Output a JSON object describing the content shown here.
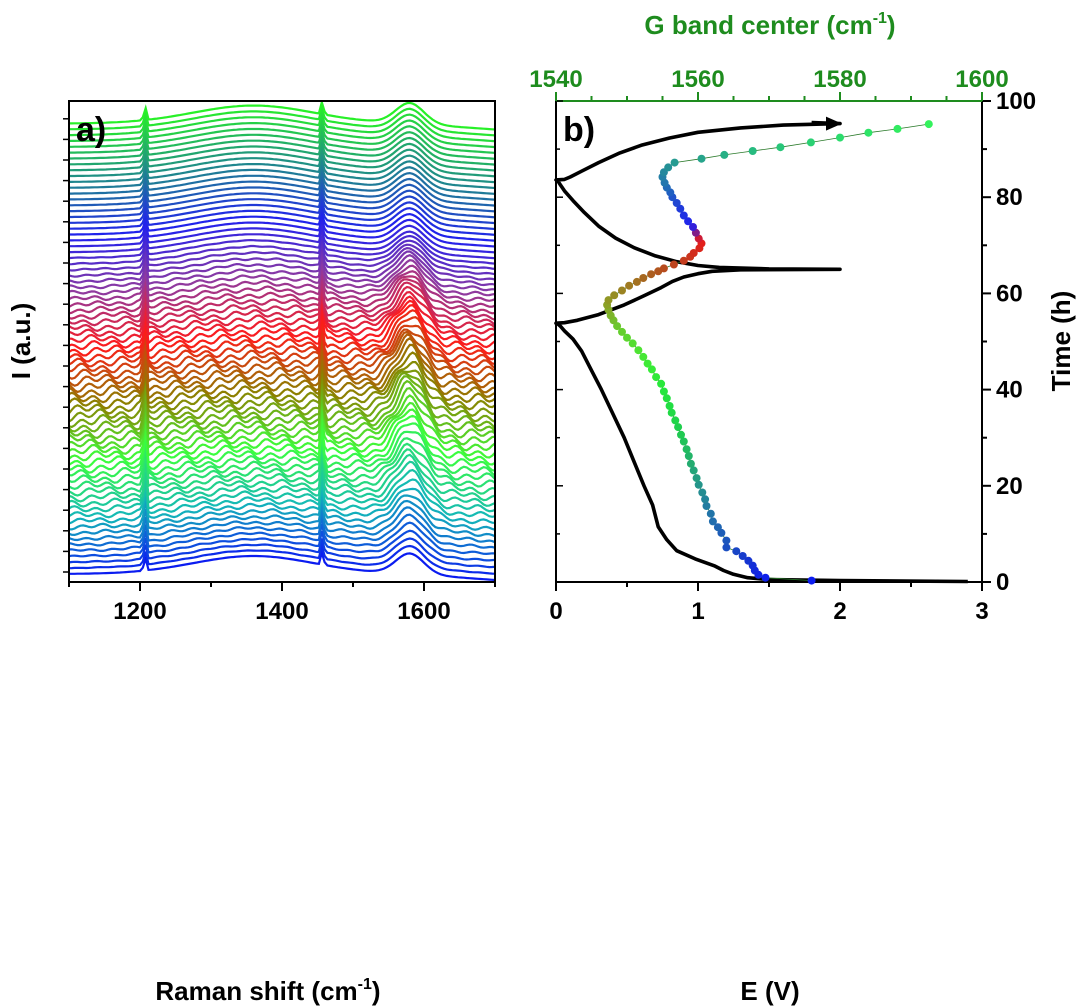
{
  "chart_data": [
    {
      "panel": "a)",
      "type": "line",
      "xlabel": "Raman shift (cm",
      "xlabel_sup": "-1",
      "xlabel_end": ")",
      "ylabel": "I (a.u.)",
      "xlim": [
        1100,
        1700
      ],
      "xticks": [
        1200,
        1400,
        1600
      ],
      "y_tick_labels_shown": false,
      "n_spectra": 78,
      "features": {
        "broad_D_band_center": 1360,
        "G_band_center": 1580,
        "sharp_spikes": [
          1207,
          1457
        ]
      },
      "color_sequence_bottom_to_top": [
        "#0b1cf0",
        "#13b8b8",
        "#3cff3c",
        "#8c8000",
        "#ff1a1a",
        "#8f3aa0",
        "#2020ee",
        "#1f8a8a",
        "#28f028"
      ],
      "highlight_color": "#ff1a1a"
    },
    {
      "panel": "b)",
      "type": "line",
      "xlabel": "E (V)",
      "xlim": [
        0,
        3
      ],
      "xticks": [
        0,
        1,
        2,
        3
      ],
      "ylabel": "Time (h)",
      "ylim": [
        0,
        100
      ],
      "yticks": [
        0,
        20,
        40,
        60,
        80,
        100
      ],
      "top_axis": {
        "label": "G band center (cm",
        "label_sup": "-1",
        "label_end": ")",
        "lim": [
          1540,
          1600
        ],
        "ticks": [
          1540,
          1560,
          1580,
          1600
        ],
        "color": "#1e8c1e"
      },
      "series": [
        {
          "axis": "E (V)",
          "color": "#000000",
          "x": [
            2.9,
            2.0,
            1.5,
            1.35,
            1.25,
            1.18,
            1.12,
            0.98,
            0.85,
            0.78,
            0.72,
            0.68,
            0.62,
            0.55,
            0.48,
            0.4,
            0.32,
            0.25,
            0.18,
            0.12,
            0.06,
            0.03,
            0.015,
            0.0,
            0.06,
            0.15,
            0.3,
            0.48,
            0.62,
            0.74,
            0.82,
            0.9,
            1.0,
            1.1,
            1.3,
            2.0,
            1.5,
            1.15,
            1.0,
            0.85,
            0.7,
            0.55,
            0.42,
            0.3,
            0.2,
            0.12,
            0.06,
            0.03,
            0.015,
            0.0,
            0.06,
            0.1,
            0.18,
            0.3,
            0.45,
            0.6,
            0.8,
            1.0,
            1.3,
            1.6,
            2.0,
            1.8
          ],
          "y": [
            0.1,
            0.3,
            0.5,
            0.9,
            1.6,
            2.4,
            3.3,
            4.8,
            6.5,
            8.8,
            11.5,
            16,
            20,
            25,
            30,
            35,
            40,
            44,
            48,
            50.5,
            52.2,
            53.2,
            53.6,
            53.8,
            53.9,
            54.4,
            55.6,
            57.6,
            59.5,
            61.2,
            62.5,
            63.4,
            64.1,
            64.6,
            64.9,
            65.0,
            65.1,
            65.4,
            65.8,
            66.6,
            67.8,
            69.5,
            71.5,
            74,
            76.8,
            79.3,
            81.3,
            82.6,
            83.3,
            83.6,
            83.7,
            84.2,
            85.4,
            87.2,
            89.2,
            90.8,
            92.3,
            93.5,
            94.4,
            95.0,
            95.3,
            95.5
          ]
        },
        {
          "axis": "G band center",
          "marker": "dot",
          "x": [
            1576,
            1569.5,
            1568.5,
            1568,
            1567.7,
            1567.1,
            1566.3,
            1565.4,
            1564,
            1564,
            1563.3,
            1562.8,
            1562.1,
            1561.8,
            1561.2,
            1561,
            1560.6,
            1560.1,
            1559.8,
            1559.4,
            1559,
            1558.7,
            1558.4,
            1558,
            1557.6,
            1557.2,
            1556.8,
            1556.3,
            1556,
            1555.6,
            1555.2,
            1554.8,
            1554.1,
            1553.5,
            1552.9,
            1552.3,
            1551.6,
            1550.8,
            1550,
            1549.3,
            1548.6,
            1548.1,
            1547.7,
            1547.4,
            1547.2,
            1547.4,
            1548.2,
            1549.3,
            1550.3,
            1551.4,
            1552.3,
            1553.4,
            1554.4,
            1555.2,
            1556.6,
            1558,
            1558.9,
            1559.4,
            1560.2,
            1560.5,
            1560.1,
            1559.7,
            1559.3,
            1558.6,
            1558,
            1557.5,
            1557,
            1556.4,
            1556.1,
            1555.6,
            1555.3,
            1555,
            1555.2,
            1555.8,
            1556.7,
            1560.5,
            1563.7,
            1567.7,
            1571.6,
            1575.9,
            1580,
            1584,
            1588.1,
            1592.5
          ],
          "y": [
            0.3,
            0.9,
            1.5,
            2.4,
            3.4,
            4.4,
            5.4,
            6.4,
            7.2,
            8.6,
            10.2,
            11.4,
            12.6,
            14.2,
            15.8,
            17.2,
            18.6,
            20.2,
            21.6,
            23.2,
            24.6,
            26.2,
            27.6,
            29.2,
            30.6,
            32.2,
            33.6,
            35.2,
            36.6,
            38.2,
            39.6,
            41.2,
            42.6,
            44.2,
            45.4,
            46.8,
            48.2,
            49.6,
            50.8,
            52,
            53.2,
            54.4,
            55.4,
            56.6,
            57.6,
            58.6,
            59.6,
            60.6,
            61.6,
            62.4,
            63.2,
            64,
            64.6,
            65.2,
            66,
            66.8,
            67.6,
            68.4,
            69.4,
            70.4,
            71.4,
            72.6,
            73.8,
            75,
            76.2,
            77.6,
            78.8,
            80,
            81,
            82,
            83,
            84.2,
            85.2,
            86.2,
            87.2,
            88,
            88.8,
            89.6,
            90.4,
            91.4,
            92.4,
            93.4,
            94.2,
            95.2
          ],
          "colors": [
            "#0b1cf0",
            "#1226e0",
            "#1535d0",
            "#1a4cc2",
            "#1f60b5",
            "#2174a8",
            "#248a96",
            "#249e80",
            "#22b26a",
            "#20c556",
            "#1fd548",
            "#22e040",
            "#28e83a",
            "#3cec36",
            "#50e232",
            "#64d02e",
            "#78ba2a",
            "#8ca026",
            "#9a8622",
            "#a46e20",
            "#b0561e",
            "#c0401e",
            "#d22c1c",
            "#e81a1a",
            "#2020ee",
            "#2038dc",
            "#2058c6",
            "#2276ae",
            "#248e98",
            "#26a68a",
            "#28c47a",
            "#2ce06a",
            "#34f25c"
          ]
        }
      ]
    }
  ]
}
